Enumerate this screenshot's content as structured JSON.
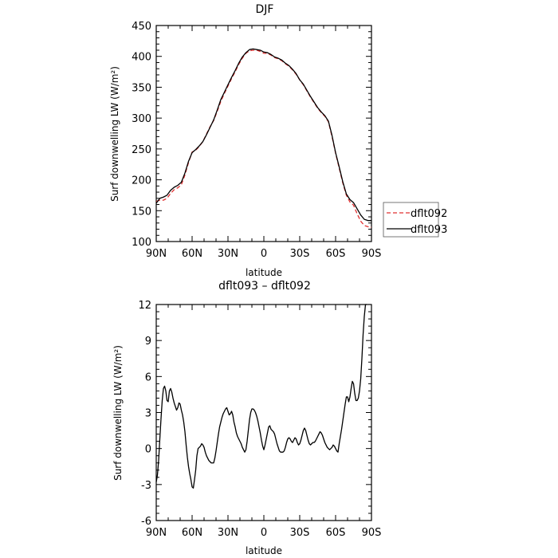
{
  "chart_data": [
    {
      "type": "line",
      "title": "DJF",
      "xlabel": "latitude",
      "ylabel": "Surf downwelling LW (W/m²)",
      "x_ticks": [
        {
          "value": 90,
          "label": "90N"
        },
        {
          "value": 60,
          "label": "60N"
        },
        {
          "value": 30,
          "label": "30N"
        },
        {
          "value": 0,
          "label": "0"
        },
        {
          "value": -30,
          "label": "30S"
        },
        {
          "value": -60,
          "label": "60S"
        },
        {
          "value": -90,
          "label": "90S"
        }
      ],
      "xlim": [
        90,
        -90
      ],
      "ylim": [
        100,
        450
      ],
      "y_ticks": [
        100,
        150,
        200,
        250,
        300,
        350,
        400,
        450
      ],
      "grid": false,
      "legend_position": "right",
      "series": [
        {
          "name": "dflt092",
          "color": "#e03030",
          "dash": "dashed",
          "lat": [
            90,
            87,
            84,
            81,
            78,
            75,
            72,
            69,
            66,
            63,
            60,
            57,
            54,
            51,
            48,
            45,
            42,
            39,
            36,
            33,
            30,
            27,
            24,
            21,
            18,
            15,
            12,
            9,
            6,
            3,
            0,
            -3,
            -6,
            -9,
            -12,
            -15,
            -18,
            -21,
            -24,
            -27,
            -30,
            -33,
            -36,
            -39,
            -42,
            -45,
            -48,
            -51,
            -54,
            -57,
            -60,
            -63,
            -66,
            -69,
            -72,
            -75,
            -78,
            -81,
            -84,
            -87,
            -90
          ],
          "values": [
            165,
            167,
            167,
            170,
            178,
            184,
            187,
            192,
            208,
            228,
            245,
            248,
            254,
            262,
            274,
            286,
            296,
            311,
            327,
            340,
            352,
            364,
            375,
            387,
            397,
            405,
            409,
            410,
            410,
            408,
            405,
            405,
            402,
            398,
            396,
            393,
            388,
            384,
            378,
            371,
            362,
            354,
            344,
            334,
            325,
            316,
            309,
            303,
            294,
            270,
            243,
            219,
            195,
            175,
            164,
            159,
            145,
            133,
            126,
            124,
            123
          ]
        },
        {
          "name": "dflt093",
          "color": "#000000",
          "dash": "solid",
          "lat": [
            90,
            87,
            84,
            81,
            78,
            75,
            72,
            69,
            66,
            63,
            60,
            57,
            54,
            51,
            48,
            45,
            42,
            39,
            36,
            33,
            30,
            27,
            24,
            21,
            18,
            15,
            12,
            9,
            6,
            3,
            0,
            -3,
            -6,
            -9,
            -12,
            -15,
            -18,
            -21,
            -24,
            -27,
            -30,
            -33,
            -36,
            -39,
            -42,
            -45,
            -48,
            -51,
            -54,
            -57,
            -60,
            -63,
            -66,
            -69,
            -72,
            -75,
            -78,
            -81,
            -84,
            -87,
            -90
          ],
          "values": [
            162,
            170,
            172,
            175,
            183,
            188,
            191,
            196,
            211,
            230,
            244,
            249,
            255,
            262,
            273,
            285,
            297,
            313,
            330,
            342,
            354,
            366,
            377,
            389,
            399,
            406,
            411,
            412,
            411,
            410,
            407,
            406,
            403,
            399,
            397,
            394,
            389,
            385,
            379,
            372,
            362,
            355,
            345,
            335,
            326,
            317,
            310,
            304,
            295,
            272,
            244,
            221,
            197,
            177,
            168,
            163,
            153,
            143,
            136,
            134,
            134
          ]
        }
      ]
    },
    {
      "type": "line",
      "title": "dflt093 – dflt092",
      "xlabel": "latitude",
      "ylabel": "Surf downwelling LW (W/m²)",
      "x_ticks": [
        {
          "value": 90,
          "label": "90N"
        },
        {
          "value": 60,
          "label": "60N"
        },
        {
          "value": 30,
          "label": "30N"
        },
        {
          "value": 0,
          "label": "0"
        },
        {
          "value": -30,
          "label": "30S"
        },
        {
          "value": -60,
          "label": "60S"
        },
        {
          "value": -90,
          "label": "90S"
        }
      ],
      "xlim": [
        90,
        -90
      ],
      "ylim": [
        -6,
        12
      ],
      "y_ticks": [
        -6,
        -3,
        0,
        3,
        6,
        9,
        12
      ],
      "grid": false,
      "series": [
        {
          "color": "#000000",
          "dash": "solid",
          "lat": [
            90,
            89,
            88,
            87,
            86,
            85,
            84,
            83,
            82,
            81,
            80,
            79,
            78,
            77,
            76,
            75,
            74,
            73,
            72,
            71,
            70,
            69,
            68,
            67,
            66,
            65,
            64,
            63,
            62,
            61,
            60,
            59,
            58,
            57,
            56,
            55,
            54,
            53,
            52,
            51,
            50,
            49,
            48,
            47,
            46,
            45,
            44,
            43,
            42,
            41,
            40,
            39,
            38,
            37,
            36,
            35,
            34,
            33,
            32,
            31,
            30,
            29,
            28,
            27,
            26,
            25,
            24,
            23,
            22,
            21,
            20,
            19,
            18,
            17,
            16,
            15,
            14,
            13,
            12,
            11,
            10,
            9,
            8,
            7,
            6,
            5,
            4,
            3,
            2,
            1,
            0,
            -1,
            -2,
            -3,
            -4,
            -5,
            -6,
            -7,
            -8,
            -9,
            -10,
            -11,
            -12,
            -13,
            -14,
            -15,
            -16,
            -17,
            -18,
            -19,
            -20,
            -21,
            -22,
            -23,
            -24,
            -25,
            -26,
            -27,
            -28,
            -29,
            -30,
            -31,
            -32,
            -33,
            -34,
            -35,
            -36,
            -37,
            -38,
            -39,
            -40,
            -41,
            -42,
            -43,
            -44,
            -45,
            -46,
            -47,
            -48,
            -49,
            -50,
            -51,
            -52,
            -53,
            -54,
            -55,
            -56,
            -57,
            -58,
            -59,
            -60,
            -61,
            -62,
            -63,
            -64,
            -65,
            -66,
            -67,
            -68,
            -69,
            -70,
            -71,
            -72,
            -73,
            -74,
            -75,
            -76,
            -77,
            -78,
            -79,
            -80,
            -81,
            -82,
            -83,
            -84,
            -85,
            -86,
            -87,
            -88,
            -89,
            -90
          ],
          "values": [
            -2.8,
            -2.2,
            -1.0,
            0.8,
            2.5,
            4.0,
            5.0,
            5.2,
            4.8,
            4.0,
            3.9,
            4.8,
            5.0,
            4.7,
            4.2,
            3.8,
            3.5,
            3.2,
            3.4,
            3.8,
            3.7,
            3.2,
            2.8,
            2.2,
            1.4,
            0.3,
            -0.7,
            -1.5,
            -2.1,
            -2.6,
            -3.2,
            -3.3,
            -2.6,
            -1.8,
            -0.6,
            0.0,
            0.1,
            0.2,
            0.4,
            0.3,
            0.1,
            -0.3,
            -0.6,
            -0.8,
            -1.0,
            -1.1,
            -1.2,
            -1.2,
            -1.2,
            -0.8,
            -0.2,
            0.5,
            1.2,
            1.8,
            2.2,
            2.6,
            2.9,
            3.1,
            3.3,
            3.4,
            3.1,
            2.8,
            2.9,
            3.1,
            2.8,
            2.2,
            1.8,
            1.3,
            1.0,
            0.8,
            0.6,
            0.4,
            0.1,
            -0.1,
            -0.3,
            -0.1,
            0.6,
            1.5,
            2.4,
            3.0,
            3.3,
            3.3,
            3.2,
            3.0,
            2.7,
            2.3,
            1.8,
            1.3,
            0.7,
            0.2,
            -0.1,
            0.3,
            0.8,
            1.3,
            1.8,
            1.9,
            1.6,
            1.5,
            1.4,
            1.2,
            0.8,
            0.4,
            0.1,
            -0.2,
            -0.3,
            -0.3,
            -0.3,
            -0.2,
            0.1,
            0.5,
            0.8,
            0.9,
            0.8,
            0.6,
            0.5,
            0.7,
            0.9,
            0.8,
            0.5,
            0.3,
            0.4,
            0.7,
            1.1,
            1.5,
            1.7,
            1.5,
            1.1,
            0.7,
            0.4,
            0.3,
            0.4,
            0.5,
            0.5,
            0.6,
            0.8,
            1.0,
            1.2,
            1.4,
            1.3,
            1.1,
            0.8,
            0.5,
            0.3,
            0.1,
            0.0,
            -0.1,
            0.0,
            0.1,
            0.3,
            0.2,
            0.0,
            -0.2,
            -0.3,
            0.4,
            1.0,
            1.6,
            2.3,
            3.0,
            3.7,
            4.3,
            4.3,
            3.9,
            4.3,
            5.0,
            5.6,
            5.4,
            4.6,
            4.0,
            4.0,
            4.2,
            4.8,
            5.8,
            7.5,
            9.5,
            11.0,
            12.0,
            12.0
          ]
        }
      ]
    }
  ]
}
